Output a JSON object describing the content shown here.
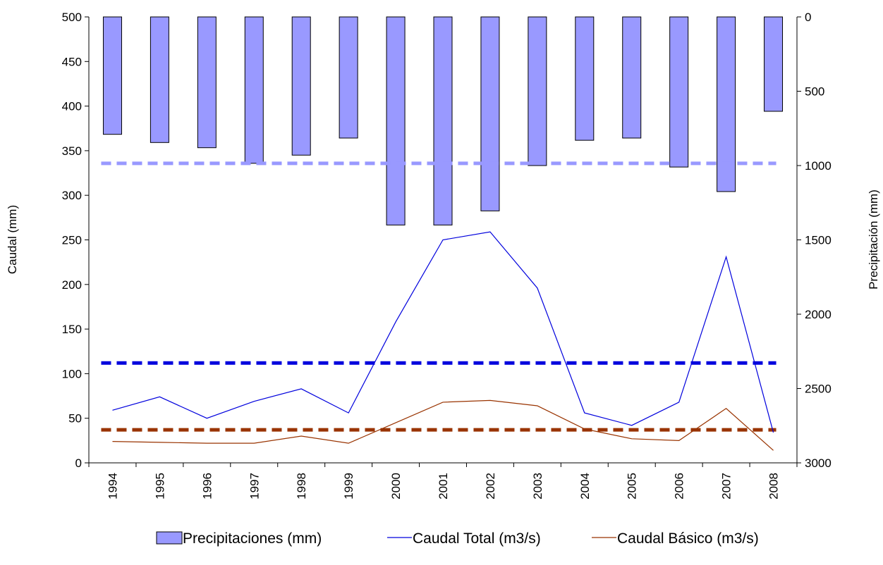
{
  "chart_data": {
    "type": "bar",
    "categories": [
      "1994",
      "1995",
      "1996",
      "1997",
      "1998",
      "1999",
      "2000",
      "2001",
      "2002",
      "2003",
      "2004",
      "2005",
      "2006",
      "2007",
      "2008"
    ],
    "ylabel_left": "Caudal (mm)",
    "ylabel_right": "Precipitación (mm)",
    "ylim_left": [
      0,
      500
    ],
    "ylim_right": [
      0,
      3000
    ],
    "right_axis_inverted": true,
    "yticks_left": [
      0,
      50,
      100,
      150,
      200,
      250,
      300,
      350,
      400,
      450,
      500
    ],
    "yticks_right": [
      0,
      500,
      1000,
      1500,
      2000,
      2500,
      3000
    ],
    "legend_position": "bottom",
    "grid": false,
    "series": [
      {
        "name": "Precipitaciones (mm)",
        "type": "bar",
        "axis": "right",
        "color": "#9999ff",
        "values": [
          790,
          845,
          880,
          985,
          930,
          815,
          1400,
          1400,
          1305,
          1000,
          830,
          815,
          1010,
          1175,
          635
        ]
      },
      {
        "name": "Caudal Total (m3/s)",
        "type": "line",
        "axis": "left",
        "color": "#0000dd",
        "values": [
          59,
          74,
          50,
          69,
          83,
          56,
          158,
          250,
          259,
          196,
          56,
          42,
          68,
          231,
          34
        ]
      },
      {
        "name": "Caudal Básico (m3/s)",
        "type": "line",
        "axis": "left",
        "color": "#993300",
        "values": [
          24,
          23,
          22,
          22,
          30,
          22,
          45,
          68,
          70,
          64,
          38,
          27,
          25,
          61,
          14
        ]
      }
    ],
    "reference_lines": [
      {
        "axis": "right",
        "value": 985,
        "color": "#9999ff",
        "style": "dashed"
      },
      {
        "axis": "left",
        "value": 112,
        "color": "#0000dd",
        "style": "dashed"
      },
      {
        "axis": "left",
        "value": 37,
        "color": "#993300",
        "style": "dashed"
      }
    ]
  }
}
